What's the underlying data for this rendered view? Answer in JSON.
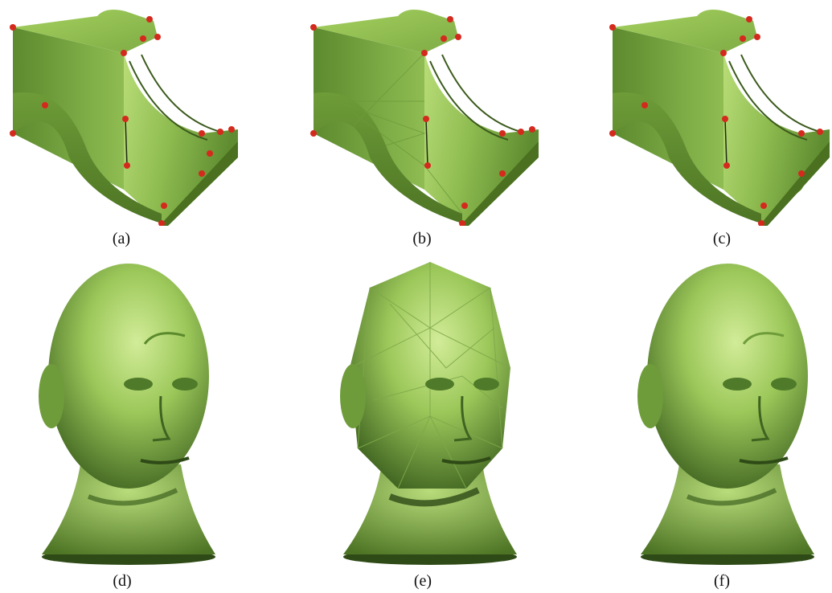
{
  "figure": {
    "panels": [
      {
        "id": "a",
        "label": "(a)",
        "subject": "cad-part-mesh"
      },
      {
        "id": "b",
        "label": "(b)",
        "subject": "cad-part-mesh-coarse"
      },
      {
        "id": "c",
        "label": "(c)",
        "subject": "cad-part-mesh-smooth"
      },
      {
        "id": "d",
        "label": "(d)",
        "subject": "head-mesh"
      },
      {
        "id": "e",
        "label": "(e)",
        "subject": "head-mesh-coarse"
      },
      {
        "id": "f",
        "label": "(f)",
        "subject": "head-mesh-smooth"
      }
    ],
    "colors": {
      "mesh_green": "#9cc85a",
      "mesh_dark": "#4f7a2a",
      "mesh_light": "#c8e48a",
      "vertex_red": "#d42a1e",
      "edge_dark": "#1e2a12"
    }
  }
}
